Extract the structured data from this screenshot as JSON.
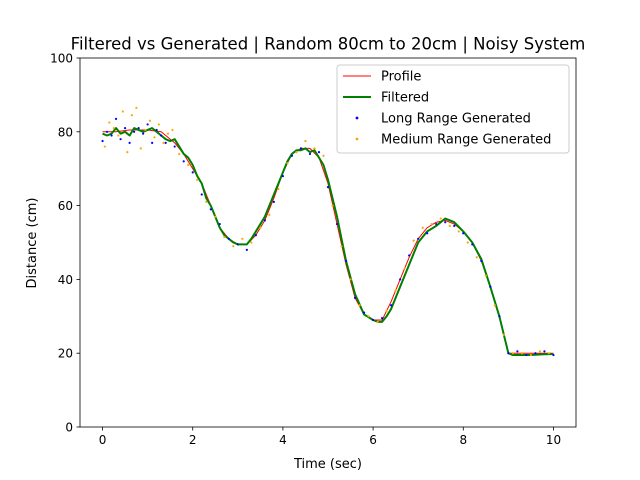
{
  "chart_data": {
    "type": "line",
    "title": "Filtered vs Generated | Random 80cm to 20cm | Noisy System",
    "xlabel": "Time (sec)",
    "ylabel": "Distance (cm)",
    "xlim": [
      -0.5,
      10.5
    ],
    "ylim": [
      0,
      100
    ],
    "xticks": [
      0,
      2,
      4,
      6,
      8,
      10
    ],
    "yticks": [
      0,
      20,
      40,
      60,
      80,
      100
    ],
    "grid": false,
    "legend_position": "upper right",
    "series": [
      {
        "name": "Profile",
        "kind": "line",
        "color": "#ff0000",
        "x": [
          0,
          0.3,
          0.6,
          1.0,
          1.3,
          1.6,
          1.8,
          2.0,
          2.2,
          2.4,
          2.6,
          2.8,
          3.0,
          3.2,
          3.4,
          3.6,
          3.8,
          4.0,
          4.2,
          4.4,
          4.6,
          4.8,
          5.0,
          5.2,
          5.4,
          5.6,
          5.8,
          6.0,
          6.2,
          6.4,
          6.6,
          6.8,
          7.0,
          7.2,
          7.4,
          7.6,
          7.8,
          8.0,
          8.2,
          8.4,
          8.6,
          8.8,
          9.0,
          9.2,
          9.5,
          10.0
        ],
        "y": [
          80,
          80,
          80.5,
          80.5,
          80,
          77,
          74,
          70,
          66,
          60,
          54,
          51,
          49.5,
          49.5,
          52,
          56,
          62,
          69,
          74,
          75.5,
          75.5,
          73,
          66,
          55,
          44,
          35,
          30.5,
          29,
          29,
          34,
          40,
          46,
          51,
          54,
          55.5,
          56,
          55,
          53,
          50,
          45,
          38,
          30,
          20,
          20,
          20,
          20
        ]
      },
      {
        "name": "Filtered",
        "kind": "line",
        "color": "#008000",
        "x": [
          0,
          0.1,
          0.2,
          0.3,
          0.4,
          0.5,
          0.6,
          0.7,
          0.8,
          0.9,
          1.0,
          1.1,
          1.2,
          1.3,
          1.4,
          1.5,
          1.6,
          1.7,
          1.8,
          1.9,
          2.0,
          2.1,
          2.2,
          2.3,
          2.4,
          2.5,
          2.6,
          2.7,
          2.8,
          2.9,
          3.0,
          3.1,
          3.2,
          3.3,
          3.4,
          3.5,
          3.6,
          3.7,
          3.8,
          3.9,
          4.0,
          4.1,
          4.2,
          4.3,
          4.4,
          4.5,
          4.6,
          4.7,
          4.8,
          4.9,
          5.0,
          5.2,
          5.4,
          5.6,
          5.8,
          6.0,
          6.1,
          6.2,
          6.3,
          6.4,
          6.6,
          6.8,
          7.0,
          7.2,
          7.4,
          7.5,
          7.6,
          7.7,
          7.8,
          8.0,
          8.2,
          8.4,
          8.6,
          8.8,
          9.0,
          9.1,
          9.3,
          9.5,
          9.8,
          10.0
        ],
        "y": [
          79.5,
          79,
          79.5,
          81,
          79.5,
          80,
          79,
          81,
          80.5,
          80,
          80.5,
          81,
          80,
          79,
          78,
          77.5,
          78,
          76,
          74,
          73,
          71,
          68,
          66,
          62,
          60,
          57,
          54,
          52,
          51,
          50,
          49.5,
          49.5,
          49.5,
          51,
          53,
          55,
          57,
          60,
          63,
          66,
          69,
          72,
          74,
          75,
          75,
          75.5,
          74.5,
          75,
          73,
          71,
          67,
          57,
          45,
          36,
          30.5,
          29,
          28.5,
          28.5,
          30,
          32,
          38,
          44,
          50,
          53,
          54.5,
          55.5,
          56.5,
          56,
          55.5,
          53,
          50,
          45.5,
          38,
          30,
          20,
          19.5,
          19.5,
          19.5,
          19.7,
          19.8
        ]
      },
      {
        "name": "Long Range Generated",
        "kind": "scatter",
        "color": "#0000ff",
        "x": [
          0,
          0.1,
          0.2,
          0.3,
          0.4,
          0.5,
          0.6,
          0.7,
          0.8,
          0.9,
          1.0,
          1.1,
          1.2,
          1.3,
          1.4,
          1.6,
          1.8,
          2.0,
          2.2,
          2.4,
          2.6,
          2.8,
          3.0,
          3.2,
          3.4,
          3.6,
          3.8,
          4.0,
          4.2,
          4.4,
          4.6,
          4.8,
          5.0,
          5.2,
          5.4,
          5.6,
          5.8,
          6.0,
          6.2,
          6.4,
          6.6,
          6.8,
          7.0,
          7.2,
          7.4,
          7.6,
          7.8,
          8.0,
          8.2,
          8.4,
          8.6,
          8.8,
          9.0,
          9.2,
          9.4,
          9.6,
          9.8,
          10.0
        ],
        "y": [
          77.5,
          80,
          79,
          83.5,
          78,
          81,
          77,
          80,
          81,
          79.5,
          82,
          77,
          80.5,
          79,
          77,
          76,
          72,
          69,
          63,
          59,
          55,
          51,
          49.5,
          48,
          52,
          56,
          61,
          68,
          73.5,
          75.5,
          74,
          74.5,
          65,
          55,
          45,
          35,
          31,
          29,
          29.5,
          33,
          40,
          46.5,
          51,
          52.5,
          55,
          55.5,
          54.5,
          52.5,
          49.5,
          45,
          38,
          30,
          20,
          20.5,
          19.5,
          20,
          20.5,
          19.5
        ]
      },
      {
        "name": "Medium Range Generated",
        "kind": "scatter",
        "color": "#ffa500",
        "x": [
          0.05,
          0.15,
          0.25,
          0.35,
          0.45,
          0.55,
          0.65,
          0.75,
          0.85,
          0.95,
          1.05,
          1.15,
          1.25,
          1.35,
          1.45,
          1.55,
          1.7,
          1.9,
          2.1,
          2.3,
          2.5,
          2.7,
          2.9,
          3.1,
          3.3,
          3.5,
          3.7,
          3.9,
          4.1,
          4.3,
          4.5,
          4.7,
          4.9,
          5.1,
          5.3,
          5.5,
          5.7,
          5.9,
          6.1,
          6.3,
          6.5,
          6.7,
          6.9,
          7.1,
          7.3,
          7.5,
          7.7,
          7.9,
          8.1,
          8.3,
          8.5,
          8.7,
          8.9,
          9.1,
          9.3,
          9.5,
          9.7,
          9.9
        ],
        "y": [
          76,
          82.5,
          81,
          79,
          85.5,
          74.5,
          84.5,
          86.5,
          75.5,
          80.5,
          83,
          78.5,
          82,
          77,
          79.5,
          80.5,
          74,
          71,
          67,
          61,
          57,
          51.5,
          49,
          51,
          50,
          54,
          57.5,
          64.5,
          71.5,
          74.5,
          77.5,
          75.5,
          73.5,
          60,
          49,
          40,
          33,
          30,
          28.5,
          31.5,
          37,
          43,
          50.5,
          54,
          55,
          56.5,
          54.5,
          53,
          50,
          46,
          41,
          33,
          25,
          20,
          20,
          19.5,
          20.5,
          20
        ]
      }
    ]
  }
}
